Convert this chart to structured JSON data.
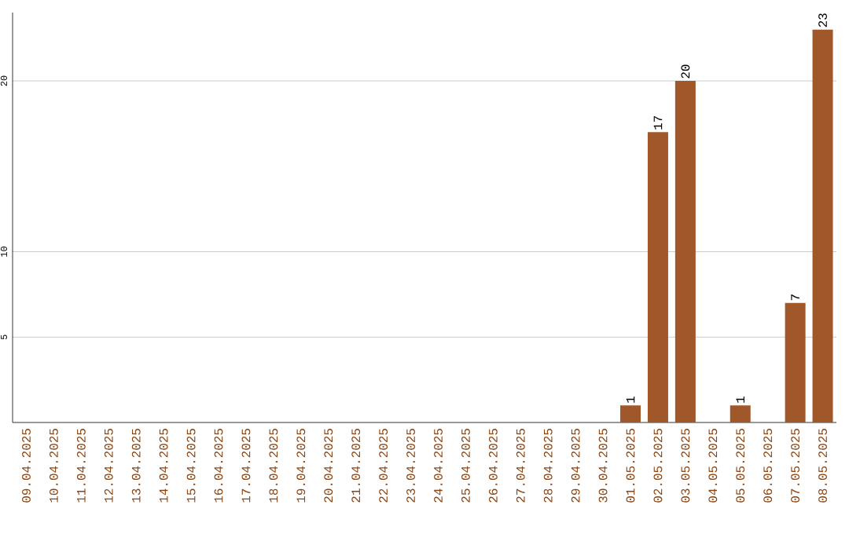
{
  "chart_data": {
    "type": "bar",
    "categories": [
      "09.04.2025",
      "10.04.2025",
      "11.04.2025",
      "12.04.2025",
      "13.04.2025",
      "14.04.2025",
      "15.04.2025",
      "16.04.2025",
      "17.04.2025",
      "18.04.2025",
      "19.04.2025",
      "20.04.2025",
      "21.04.2025",
      "22.04.2025",
      "23.04.2025",
      "24.04.2025",
      "25.04.2025",
      "26.04.2025",
      "27.04.2025",
      "28.04.2025",
      "29.04.2025",
      "30.04.2025",
      "01.05.2025",
      "02.05.2025",
      "03.05.2025",
      "04.05.2025",
      "05.05.2025",
      "06.05.2025",
      "07.05.2025",
      "08.05.2025"
    ],
    "values": [
      0,
      0,
      0,
      0,
      0,
      0,
      0,
      0,
      0,
      0,
      0,
      0,
      0,
      0,
      0,
      0,
      0,
      0,
      0,
      0,
      0,
      0,
      1,
      17,
      20,
      0,
      1,
      0,
      7,
      23
    ],
    "value_labels": [
      null,
      null,
      null,
      null,
      null,
      null,
      null,
      null,
      null,
      null,
      null,
      null,
      null,
      null,
      null,
      null,
      null,
      null,
      null,
      null,
      null,
      null,
      "1",
      "17",
      "20",
      null,
      "1",
      null,
      "7",
      "23"
    ],
    "color": "#a0582a",
    "ylim": [
      0,
      24
    ],
    "yticks": [
      5,
      10,
      20
    ],
    "grid": "y"
  }
}
